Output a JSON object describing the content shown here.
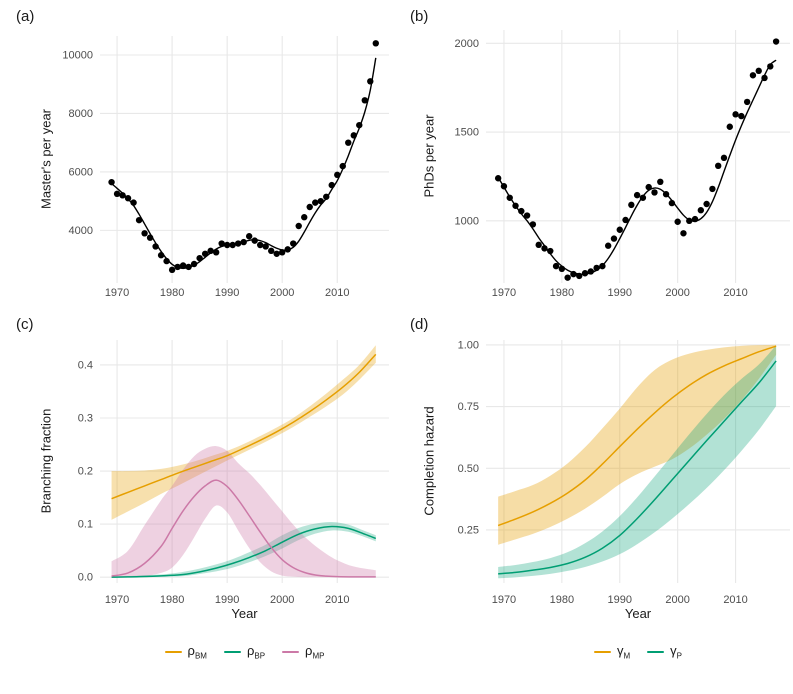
{
  "figure": {
    "background": "#ffffff",
    "grid_color": "#e8e8e8",
    "tick_text_color": "#4d4d4d",
    "axis_title_color": "#1a1a1a",
    "point_color": "#000000",
    "trend_color": "#000000"
  },
  "chart_data": [
    {
      "id": "a",
      "type": "scatter",
      "tag": "(a)",
      "ylabel": "Master's per year",
      "xlabel": "",
      "xlim": [
        1966.9,
        2019.4
      ],
      "ylim": [
        2200,
        10650
      ],
      "xticks": {
        "values": [
          1970,
          1980,
          1990,
          2000,
          2010
        ],
        "labels": [
          "1970",
          "1980",
          "1990",
          "2000",
          "2010"
        ]
      },
      "yticks": {
        "values": [
          4000,
          6000,
          8000,
          10000
        ],
        "labels": [
          "4000",
          "6000",
          "8000",
          "10000"
        ]
      },
      "points": {
        "x": [
          1969,
          1970,
          1971,
          1972,
          1973,
          1974,
          1975,
          1976,
          1977,
          1978,
          1979,
          1980,
          1981,
          1982,
          1983,
          1984,
          1985,
          1986,
          1987,
          1988,
          1989,
          1990,
          1991,
          1992,
          1993,
          1994,
          1995,
          1996,
          1997,
          1998,
          1999,
          2000,
          2001,
          2002,
          2003,
          2004,
          2005,
          2006,
          2007,
          2008,
          2009,
          2010,
          2011,
          2012,
          2013,
          2014,
          2015,
          2016,
          2017
        ],
        "y": [
          5650,
          5250,
          5200,
          5100,
          4950,
          4350,
          3900,
          3750,
          3450,
          3150,
          2950,
          2650,
          2750,
          2800,
          2750,
          2850,
          3050,
          3200,
          3300,
          3250,
          3550,
          3500,
          3500,
          3550,
          3600,
          3800,
          3650,
          3500,
          3450,
          3300,
          3200,
          3250,
          3350,
          3550,
          4150,
          4450,
          4800,
          4950,
          5000,
          5150,
          5550,
          5900,
          6200,
          7000,
          7250,
          7600,
          8450,
          9100,
          10400
        ]
      },
      "trend": {
        "x": [
          1969,
          1970,
          1971,
          1972,
          1973,
          1974,
          1975,
          1976,
          1977,
          1978,
          1979,
          1980,
          1981,
          1982,
          1983,
          1984,
          1985,
          1986,
          1987,
          1988,
          1989,
          1990,
          1991,
          1992,
          1993,
          1994,
          1995,
          1996,
          1997,
          1998,
          1999,
          2000,
          2001,
          2002,
          2003,
          2004,
          2005,
          2006,
          2007,
          2008,
          2009,
          2010,
          2011,
          2012,
          2013,
          2014,
          2015,
          2016,
          2017
        ],
        "y": [
          5600,
          5440,
          5270,
          5080,
          4850,
          4550,
          4220,
          3890,
          3570,
          3280,
          3030,
          2840,
          2730,
          2700,
          2730,
          2810,
          2930,
          3080,
          3230,
          3360,
          3450,
          3500,
          3530,
          3560,
          3610,
          3660,
          3680,
          3650,
          3580,
          3480,
          3390,
          3330,
          3330,
          3420,
          3630,
          3940,
          4280,
          4600,
          4870,
          5090,
          5400,
          5700,
          6100,
          6550,
          7050,
          7500,
          8050,
          8800,
          9900
        ]
      }
    },
    {
      "id": "b",
      "type": "scatter",
      "tag": "(b)",
      "ylabel": "PhDs per year",
      "xlabel": "",
      "xlim": [
        1966.9,
        2019.4
      ],
      "ylim": [
        650,
        2075
      ],
      "xticks": {
        "values": [
          1970,
          1980,
          1990,
          2000,
          2010
        ],
        "labels": [
          "1970",
          "1980",
          "1990",
          "2000",
          "2010"
        ]
      },
      "yticks": {
        "values": [
          1000,
          1500,
          2000
        ],
        "labels": [
          "1000",
          "1500",
          "2000"
        ]
      },
      "points": {
        "x": [
          1969,
          1970,
          1971,
          1972,
          1973,
          1974,
          1975,
          1976,
          1977,
          1978,
          1979,
          1980,
          1981,
          1982,
          1983,
          1984,
          1985,
          1986,
          1987,
          1988,
          1989,
          1990,
          1991,
          1992,
          1993,
          1994,
          1995,
          1996,
          1997,
          1998,
          1999,
          2000,
          2001,
          2002,
          2003,
          2004,
          2005,
          2006,
          2007,
          2008,
          2009,
          2010,
          2011,
          2012,
          2013,
          2014,
          2015,
          2016,
          2017
        ],
        "y": [
          1240,
          1195,
          1130,
          1085,
          1055,
          1030,
          980,
          865,
          845,
          830,
          745,
          730,
          680,
          700,
          690,
          705,
          715,
          735,
          745,
          860,
          900,
          950,
          1005,
          1090,
          1145,
          1130,
          1190,
          1160,
          1220,
          1150,
          1100,
          995,
          930,
          1000,
          1010,
          1060,
          1095,
          1180,
          1310,
          1355,
          1530,
          1600,
          1590,
          1670,
          1820,
          1845,
          1805,
          1870,
          2010
        ]
      },
      "trend": {
        "x": [
          1969,
          1970,
          1971,
          1972,
          1973,
          1974,
          1975,
          1976,
          1977,
          1978,
          1979,
          1980,
          1981,
          1982,
          1983,
          1984,
          1985,
          1986,
          1987,
          1988,
          1989,
          1990,
          1991,
          1992,
          1993,
          1994,
          1995,
          1996,
          1997,
          1998,
          1999,
          2000,
          2001,
          2002,
          2003,
          2004,
          2005,
          2006,
          2007,
          2008,
          2009,
          2010,
          2011,
          2012,
          2013,
          2014,
          2015,
          2016,
          2017
        ],
        "y": [
          1245,
          1190,
          1135,
          1085,
          1040,
          1000,
          955,
          905,
          860,
          815,
          775,
          745,
          722,
          708,
          700,
          700,
          707,
          722,
          748,
          788,
          840,
          900,
          963,
          1028,
          1088,
          1138,
          1172,
          1185,
          1178,
          1152,
          1115,
          1072,
          1032,
          1005,
          998,
          1012,
          1048,
          1108,
          1188,
          1278,
          1368,
          1455,
          1535,
          1610,
          1680,
          1750,
          1820,
          1880,
          1905
        ]
      }
    },
    {
      "id": "c",
      "type": "line-ribbon",
      "tag": "(c)",
      "ylabel": "Branching fraction",
      "xlabel": "Year",
      "xlim": [
        1966.9,
        2019.4
      ],
      "ylim": [
        -0.011,
        0.447
      ],
      "xticks": {
        "values": [
          1970,
          1980,
          1990,
          2000,
          2010
        ],
        "labels": [
          "1970",
          "1980",
          "1990",
          "2000",
          "2010"
        ]
      },
      "yticks": {
        "values": [
          0,
          0.1,
          0.2,
          0.3,
          0.4
        ],
        "labels": [
          "0.0",
          "0.1",
          "0.2",
          "0.3",
          "0.4"
        ]
      },
      "series": [
        {
          "name": "rho_BM",
          "legend_main": "ρ",
          "legend_sub": "BM",
          "color": "#E69F00",
          "band_opacity": 0.32,
          "x": [
            1969,
            1972,
            1975,
            1978,
            1981,
            1984,
            1987,
            1990,
            1993,
            1996,
            1999,
            2002,
            2005,
            2008,
            2011,
            2014,
            2017
          ],
          "y": [
            0.148,
            0.16,
            0.172,
            0.184,
            0.196,
            0.207,
            0.218,
            0.229,
            0.243,
            0.258,
            0.274,
            0.292,
            0.312,
            0.334,
            0.358,
            0.386,
            0.42
          ],
          "lower": [
            0.108,
            0.124,
            0.14,
            0.157,
            0.172,
            0.188,
            0.204,
            0.22,
            0.235,
            0.25,
            0.266,
            0.283,
            0.302,
            0.322,
            0.344,
            0.372,
            0.404
          ],
          "upper": [
            0.2,
            0.2,
            0.201,
            0.204,
            0.21,
            0.218,
            0.228,
            0.238,
            0.251,
            0.266,
            0.282,
            0.3,
            0.322,
            0.346,
            0.372,
            0.4,
            0.437
          ]
        },
        {
          "name": "rho_BP",
          "legend_main": "ρ",
          "legend_sub": "BP",
          "color": "#009E73",
          "band_opacity": 0.28,
          "x": [
            1969,
            1974,
            1979,
            1982,
            1985,
            1988,
            1991,
            1994,
            1997,
            2000,
            2003,
            2006,
            2009,
            2012,
            2015,
            2017
          ],
          "y": [
            0.0,
            0.001,
            0.003,
            0.005,
            0.01,
            0.017,
            0.026,
            0.037,
            0.05,
            0.066,
            0.081,
            0.091,
            0.0955,
            0.092,
            0.081,
            0.073
          ],
          "lower": [
            0.0,
            0.0,
            0.001,
            0.002,
            0.006,
            0.011,
            0.018,
            0.028,
            0.04,
            0.054,
            0.07,
            0.082,
            0.088,
            0.0855,
            0.0755,
            0.0675
          ],
          "upper": [
            0.001,
            0.003,
            0.006,
            0.01,
            0.016,
            0.024,
            0.034,
            0.047,
            0.061,
            0.079,
            0.093,
            0.101,
            0.104,
            0.099,
            0.087,
            0.079
          ]
        },
        {
          "name": "rho_MP",
          "legend_main": "ρ",
          "legend_sub": "MP",
          "color": "#CC79A7",
          "band_opacity": 0.34,
          "x": [
            1969,
            1972,
            1975,
            1978,
            1980,
            1982,
            1984,
            1986,
            1988,
            1990,
            1992,
            1994,
            1996,
            1998,
            2000,
            2002,
            2004,
            2006,
            2008,
            2010,
            2013,
            2017
          ],
          "y": [
            0.002,
            0.008,
            0.026,
            0.058,
            0.092,
            0.125,
            0.152,
            0.172,
            0.183,
            0.171,
            0.146,
            0.116,
            0.085,
            0.056,
            0.033,
            0.018,
            0.009,
            0.004,
            0.002,
            0.001,
            0.0005,
            0.0005
          ],
          "lower": [
            0,
            0,
            0.002,
            0.008,
            0.018,
            0.042,
            0.075,
            0.11,
            0.135,
            0.122,
            0.088,
            0.055,
            0.028,
            0.011,
            0.003,
            0.001,
            0,
            0,
            0,
            0,
            0,
            0
          ],
          "upper": [
            0.03,
            0.05,
            0.098,
            0.145,
            0.172,
            0.203,
            0.228,
            0.242,
            0.247,
            0.238,
            0.215,
            0.196,
            0.174,
            0.149,
            0.124,
            0.099,
            0.077,
            0.059,
            0.044,
            0.032,
            0.02,
            0.013
          ]
        }
      ]
    },
    {
      "id": "d",
      "type": "line-ribbon",
      "tag": "(d)",
      "ylabel": "Completion hazard",
      "xlabel": "Year",
      "xlim": [
        1966.9,
        2019.4
      ],
      "ylim": [
        0.035,
        1.02
      ],
      "xticks": {
        "values": [
          1970,
          1980,
          1990,
          2000,
          2010
        ],
        "labels": [
          "1970",
          "1980",
          "1990",
          "2000",
          "2010"
        ]
      },
      "yticks": {
        "values": [
          0.25,
          0.5,
          0.75,
          1.0
        ],
        "labels": [
          "0.25",
          "0.50",
          "0.75",
          "1.00"
        ]
      },
      "series": [
        {
          "name": "gamma_M",
          "legend_main": "γ",
          "legend_sub": "M",
          "color": "#E69F00",
          "band_opacity": 0.35,
          "x": [
            1969,
            1972,
            1975,
            1978,
            1981,
            1984,
            1987,
            1990,
            1993,
            1996,
            1999,
            2002,
            2005,
            2008,
            2011,
            2014,
            2017
          ],
          "y": [
            0.268,
            0.294,
            0.323,
            0.358,
            0.4,
            0.452,
            0.517,
            0.588,
            0.658,
            0.724,
            0.784,
            0.836,
            0.88,
            0.915,
            0.944,
            0.972,
            0.995
          ],
          "lower": [
            0.19,
            0.212,
            0.234,
            0.262,
            0.296,
            0.336,
            0.384,
            0.436,
            0.476,
            0.506,
            0.536,
            0.58,
            0.636,
            0.7,
            0.775,
            0.862,
            0.96
          ],
          "upper": [
            0.385,
            0.408,
            0.432,
            0.47,
            0.52,
            0.585,
            0.662,
            0.742,
            0.828,
            0.898,
            0.94,
            0.965,
            0.98,
            0.99,
            0.996,
            0.999,
            1.0
          ]
        },
        {
          "name": "gamma_P",
          "legend_main": "γ",
          "legend_sub": "P",
          "color": "#009E73",
          "band_opacity": 0.3,
          "x": [
            1969,
            1972,
            1975,
            1978,
            1981,
            1984,
            1987,
            1990,
            1993,
            1996,
            1999,
            2002,
            2005,
            2008,
            2011,
            2014,
            2017
          ],
          "y": [
            0.072,
            0.078,
            0.087,
            0.098,
            0.114,
            0.139,
            0.176,
            0.228,
            0.296,
            0.372,
            0.452,
            0.532,
            0.612,
            0.69,
            0.768,
            0.845,
            0.935
          ],
          "lower": [
            0.054,
            0.058,
            0.064,
            0.072,
            0.084,
            0.1,
            0.122,
            0.152,
            0.192,
            0.24,
            0.295,
            0.355,
            0.42,
            0.492,
            0.57,
            0.655,
            0.752
          ],
          "upper": [
            0.1,
            0.108,
            0.12,
            0.136,
            0.16,
            0.196,
            0.244,
            0.306,
            0.382,
            0.466,
            0.552,
            0.638,
            0.72,
            0.796,
            0.862,
            0.92,
            0.998
          ]
        }
      ]
    }
  ]
}
